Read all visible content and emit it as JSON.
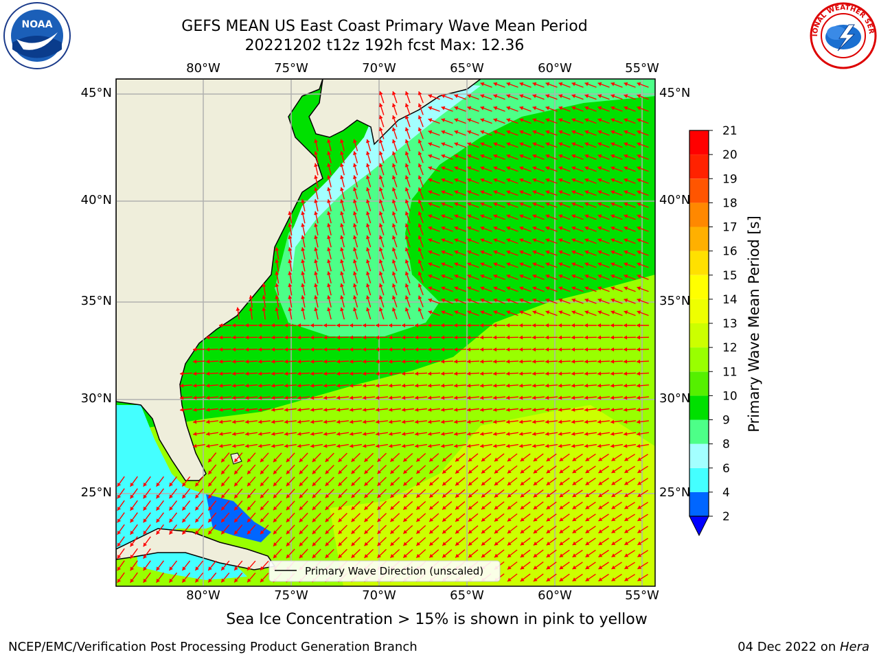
{
  "title": {
    "line1": "GEFS MEAN US East Coast Primary Wave Mean Period",
    "line2": "20221202 t12z 192h fcst   Max: 12.36"
  },
  "axes": {
    "lon_labels": [
      "80°W",
      "75°W",
      "70°W",
      "65°W",
      "60°W",
      "55°W"
    ],
    "lat_labels": [
      "45°N",
      "40°N",
      "35°N",
      "30°N",
      "25°N"
    ]
  },
  "legend": {
    "label": "Primary Wave Direction (unscaled)"
  },
  "colorbar": {
    "label": "Primary Wave Mean Period [s]",
    "ticks": [
      "2",
      "4",
      "6",
      "8",
      "9",
      "10",
      "11",
      "12",
      "13",
      "14",
      "15",
      "16",
      "17",
      "18",
      "19",
      "20",
      "21"
    ],
    "colors": [
      "#0066ff",
      "#00e5ff",
      "#44ffff",
      "#a3ffff",
      "#4dff88",
      "#00e000",
      "#55f000",
      "#99ff00",
      "#ccff00",
      "#eeff00",
      "#ffff00",
      "#ffe000",
      "#ffb000",
      "#ff8800",
      "#ff5500",
      "#ff2200",
      "#ff0000"
    ],
    "extend_color": "#0000ff"
  },
  "notes": {
    "sea_ice": "Sea Ice Concentration > 15% is shown in pink to yellow"
  },
  "footer": {
    "left": "NCEP/EMC/Verification Post Processing Product Generation Branch",
    "right_date": "04 Dec 2022 on ",
    "right_host": "Hera"
  },
  "logos": {
    "noaa_text": "NOAA",
    "nws_text": "NATIONAL WEATHER SERVICE"
  },
  "map_colors": {
    "land": "#efeedb",
    "field_low": "#4dff88",
    "field_mid": "#00e000",
    "field_high": "#99ff00",
    "field_max": "#ccff00",
    "field_cyan": "#a3ffff",
    "field_gulf": "#44ffff",
    "field_gulf_deep": "#0066ff",
    "arrow": "#ff0000",
    "grid": "#b0b0b0"
  }
}
